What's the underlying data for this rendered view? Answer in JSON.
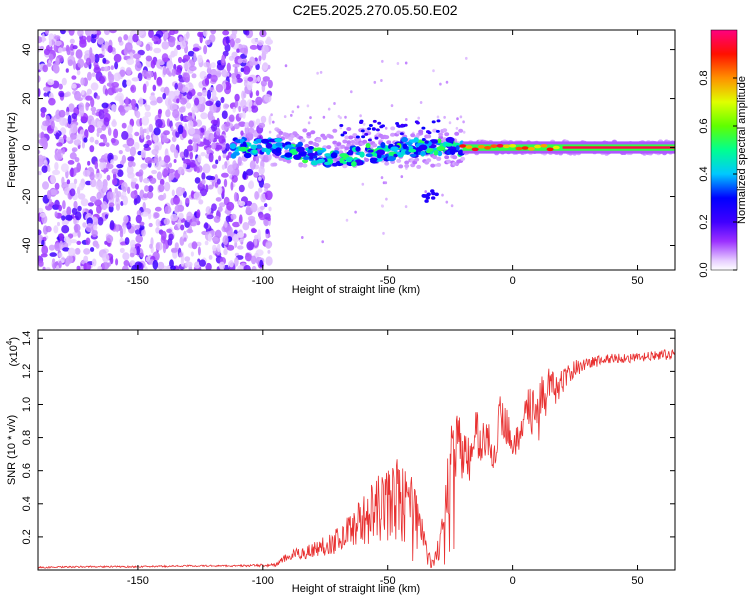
{
  "chart_data": [
    {
      "type": "heatmap",
      "title": "C2E5.2025.270.05.50.E02",
      "xlabel": "Height of straight line (km)",
      "ylabel": "Frequency (Hz)",
      "xlim": [
        -190,
        65
      ],
      "ylim": [
        -50,
        48
      ],
      "xticks": [
        -150,
        -100,
        -50,
        0,
        50
      ],
      "yticks": [
        -40,
        -20,
        0,
        20,
        40
      ],
      "xtick_labels": [
        "-150",
        "-100",
        "-50",
        "0",
        "50"
      ],
      "ytick_labels": [
        "-40",
        "-20",
        "0",
        "20",
        "40"
      ],
      "colorbar": {
        "label": "Normalized spectral amplitude",
        "range": [
          0,
          1
        ],
        "ticks": [
          0.0,
          0.2,
          0.4,
          0.6,
          0.8
        ],
        "tick_labels": [
          "0.0",
          "0.2",
          "0.4",
          "0.6",
          "0.8"
        ],
        "colors": [
          "#ffffff",
          "#d9b3ff",
          "#8a2be2",
          "#3b00ff",
          "#0000ff",
          "#00bfff",
          "#00ff80",
          "#80ff00",
          "#ffff00",
          "#ff8000",
          "#ff0000",
          "#ff0080"
        ]
      },
      "regions": [
        {
          "name": "noise",
          "x": [
            -190,
            -97
          ],
          "freq_span": [
            -50,
            48
          ],
          "amplitude": 0.15
        },
        {
          "name": "ridge-scatter",
          "x": [
            -112,
            -20
          ],
          "freq_center": 0,
          "amplitude": 0.35
        },
        {
          "name": "ridge-line",
          "x": [
            -20,
            65
          ],
          "freq_center": 0,
          "amplitude": 0.95
        },
        {
          "name": "side-branch",
          "x": [
            -36,
            -30
          ],
          "freq_span": [
            -22,
            -16
          ],
          "amplitude": 0.25
        }
      ]
    },
    {
      "type": "line",
      "xlabel": "Height of straight line (km)",
      "ylabel": "SNR (10 * v/v)",
      "scale_label": "(x10",
      "scale_exponent": "4",
      "xlim": [
        -190,
        65
      ],
      "ylim": [
        0,
        1.45
      ],
      "xticks": [
        -150,
        -100,
        -50,
        0,
        50
      ],
      "yticks": [
        0.2,
        0.4,
        0.6,
        0.8,
        1.0,
        1.2,
        1.4
      ],
      "xtick_labels": [
        "-150",
        "-100",
        "-50",
        "0",
        "50"
      ],
      "ytick_labels": [
        "0.2",
        "0.4",
        "0.6",
        "0.8",
        "1.0",
        "1.2",
        "1.4"
      ],
      "color": "#e83030",
      "series": [
        {
          "name": "SNR",
          "x": [
            -190,
            -170,
            -150,
            -130,
            -110,
            -95,
            -90,
            -80,
            -70,
            -65,
            -60,
            -55,
            -50,
            -45,
            -42,
            -40,
            -37,
            -35,
            -32,
            -30,
            -27,
            -25,
            -22,
            -20,
            -17,
            -15,
            -12,
            -10,
            -7,
            -5,
            -2,
            0,
            3,
            5,
            8,
            10,
            12,
            15,
            18,
            20,
            25,
            30,
            40,
            50,
            60,
            65
          ],
          "values": [
            0.015,
            0.02,
            0.02,
            0.025,
            0.025,
            0.03,
            0.08,
            0.12,
            0.18,
            0.25,
            0.3,
            0.35,
            0.4,
            0.45,
            0.5,
            0.4,
            0.3,
            0.15,
            0.05,
            0.1,
            0.35,
            0.6,
            0.8,
            0.7,
            0.65,
            0.85,
            0.75,
            0.8,
            0.7,
            0.95,
            0.85,
            0.8,
            0.75,
            1.05,
            0.95,
            0.95,
            1.0,
            1.15,
            1.05,
            1.15,
            1.22,
            1.25,
            1.28,
            1.28,
            1.3,
            1.3
          ],
          "noise": [
            0.005,
            0.005,
            0.005,
            0.005,
            0.005,
            0.01,
            0.03,
            0.05,
            0.08,
            0.1,
            0.15,
            0.2,
            0.25,
            0.25,
            0.2,
            0.15,
            0.1,
            0.05,
            0.03,
            0.08,
            0.15,
            0.25,
            0.25,
            0.15,
            0.15,
            0.15,
            0.15,
            0.12,
            0.12,
            0.12,
            0.12,
            0.1,
            0.1,
            0.1,
            0.15,
            0.4,
            0.15,
            0.15,
            0.1,
            0.08,
            0.05,
            0.04,
            0.03,
            0.03,
            0.03,
            0.03
          ]
        }
      ]
    }
  ]
}
